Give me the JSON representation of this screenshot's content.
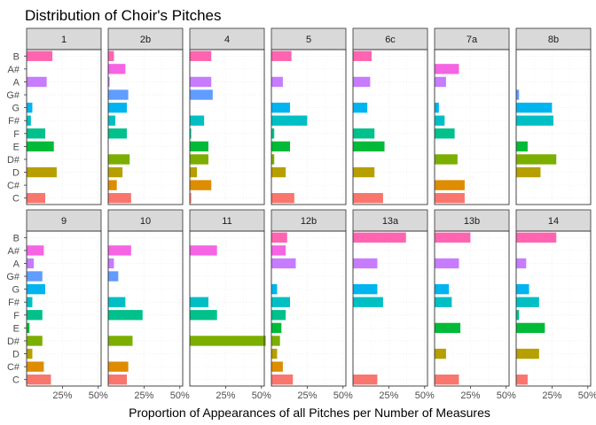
{
  "chart_data": {
    "type": "bar",
    "orientation": "horizontal",
    "title": "Distribution of Choir's Pitches",
    "xlabel": "Proportion of Appearances of all Pitches per Number of Measures",
    "ylabel": "",
    "pitches": [
      "C",
      "C#",
      "D",
      "D#",
      "E",
      "F",
      "F#",
      "G",
      "G#",
      "A",
      "A#",
      "B"
    ],
    "x_tick_values": [
      0.25,
      0.5
    ],
    "x_tick_labels": [
      "25%",
      "50%"
    ],
    "xlim": [
      0,
      0.52
    ],
    "grid": true,
    "legend": "none",
    "pitch_colors": {
      "C": "#F8766D",
      "C#": "#DE8C00",
      "D": "#B79F00",
      "D#": "#7CAE00",
      "E": "#00BA38",
      "F": "#00C08B",
      "F#": "#00BFC4",
      "G": "#00B4F0",
      "G#": "#619CFF",
      "A": "#C77CFF",
      "A#": "#F564E3",
      "B": "#FF64B0"
    },
    "panels": [
      {
        "label": "1",
        "values": {
          "C": 0.13,
          "C#": 0,
          "D": 0.21,
          "D#": 0,
          "E": 0.19,
          "F": 0.13,
          "F#": 0.03,
          "G": 0.04,
          "G#": 0,
          "A": 0.14,
          "A#": 0,
          "B": 0.18
        }
      },
      {
        "label": "2b",
        "values": {
          "C": 0.16,
          "C#": 0.06,
          "D": 0.1,
          "D#": 0.15,
          "E": 0,
          "F": 0.13,
          "F#": 0.05,
          "G": 0.13,
          "G#": 0.14,
          "A": 0.01,
          "A#": 0.12,
          "B": 0.04
        }
      },
      {
        "label": "4",
        "values": {
          "C": 0.01,
          "C#": 0.15,
          "D": 0.05,
          "D#": 0.13,
          "E": 0.13,
          "F": 0.01,
          "F#": 0.1,
          "G": 0,
          "G#": 0.16,
          "A": 0.15,
          "A#": 0,
          "B": 0.15
        }
      },
      {
        "label": "5",
        "values": {
          "C": 0.16,
          "C#": 0,
          "D": 0.1,
          "D#": 0.02,
          "E": 0.13,
          "F": 0.02,
          "F#": 0.25,
          "G": 0.13,
          "G#": 0,
          "A": 0.08,
          "A#": 0,
          "B": 0.14
        }
      },
      {
        "label": "6c",
        "values": {
          "C": 0.21,
          "C#": 0,
          "D": 0.15,
          "D#": 0,
          "E": 0.22,
          "F": 0.15,
          "F#": 0,
          "G": 0.1,
          "G#": 0,
          "A": 0.12,
          "A#": 0,
          "B": 0.13
        }
      },
      {
        "label": "7a",
        "values": {
          "C": 0.21,
          "C#": 0.21,
          "D": 0,
          "D#": 0.16,
          "E": 0,
          "F": 0.14,
          "F#": 0.07,
          "G": 0.03,
          "G#": 0,
          "A": 0.08,
          "A#": 0.17,
          "B": 0
        }
      },
      {
        "label": "8b",
        "values": {
          "C": 0,
          "C#": 0,
          "D": 0.17,
          "D#": 0.28,
          "E": 0.08,
          "F": 0,
          "F#": 0.26,
          "G": 0.25,
          "G#": 0.02,
          "A": 0,
          "A#": 0,
          "B": 0
        }
      },
      {
        "label": "9",
        "values": {
          "C": 0.17,
          "C#": 0.12,
          "D": 0.04,
          "D#": 0.11,
          "E": 0.02,
          "F": 0.11,
          "F#": 0.04,
          "G": 0.13,
          "G#": 0.11,
          "A": 0.05,
          "A#": 0.12,
          "B": 0
        }
      },
      {
        "label": "10",
        "values": {
          "C": 0.13,
          "C#": 0.14,
          "D": 0,
          "D#": 0.17,
          "E": 0,
          "F": 0.24,
          "F#": 0.12,
          "G": 0,
          "G#": 0.07,
          "A": 0.04,
          "A#": 0.16,
          "B": 0
        }
      },
      {
        "label": "11",
        "values": {
          "C": 0,
          "C#": 0,
          "D": 0,
          "D#": 0.53,
          "E": 0,
          "F": 0.19,
          "F#": 0.13,
          "G": 0,
          "G#": 0,
          "A": 0,
          "A#": 0.19,
          "B": 0
        }
      },
      {
        "label": "12b",
        "values": {
          "C": 0.15,
          "C#": 0.08,
          "D": 0.04,
          "D#": 0.06,
          "E": 0.07,
          "F": 0.1,
          "F#": 0.13,
          "G": 0.04,
          "G#": 0,
          "A": 0.17,
          "A#": 0.1,
          "B": 0.11
        }
      },
      {
        "label": "13a",
        "values": {
          "C": 0.17,
          "C#": 0,
          "D": 0,
          "D#": 0,
          "E": 0,
          "F": 0,
          "F#": 0.21,
          "G": 0.17,
          "G#": 0,
          "A": 0.17,
          "A#": 0,
          "B": 0.37
        }
      },
      {
        "label": "13b",
        "values": {
          "C": 0.17,
          "C#": 0,
          "D": 0.08,
          "D#": 0,
          "E": 0.18,
          "F": 0,
          "F#": 0.12,
          "G": 0.1,
          "G#": 0,
          "A": 0.17,
          "A#": 0,
          "B": 0.25
        }
      },
      {
        "label": "14",
        "values": {
          "C": 0.08,
          "C#": 0,
          "D": 0.16,
          "D#": 0,
          "E": 0.2,
          "F": 0.02,
          "F#": 0.16,
          "G": 0.09,
          "G#": 0,
          "A": 0.07,
          "A#": 0,
          "B": 0.28
        }
      }
    ]
  }
}
